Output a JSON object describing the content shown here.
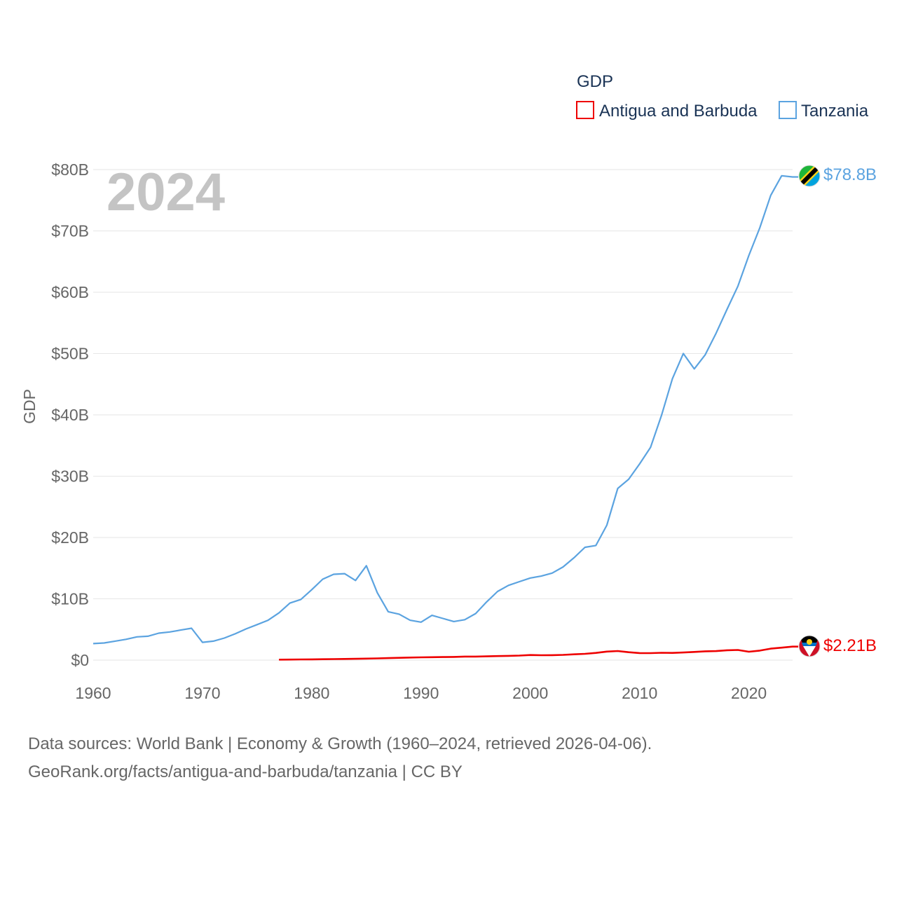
{
  "chart_data": {
    "type": "line",
    "legend_title": "GDP",
    "year_label": "2024",
    "ylabel": "GDP",
    "x_ticks": [
      "1960",
      "1970",
      "1980",
      "1990",
      "2000",
      "2010",
      "2020"
    ],
    "y_ticks": [
      "$0",
      "$10B",
      "$20B",
      "$30B",
      "$40B",
      "$50B",
      "$60B",
      "$70B",
      "$80B"
    ],
    "xlim": [
      1960,
      2024
    ],
    "ylim": [
      0,
      80
    ],
    "units": "billion US$",
    "series": [
      {
        "name": "Antigua and Barbuda",
        "color": "#ee0000",
        "end_label": "$2.21B",
        "flag": "antigua-and-barbuda-flag-icon",
        "x": [
          1977,
          1978,
          1979,
          1980,
          1981,
          1982,
          1983,
          1984,
          1985,
          1986,
          1987,
          1988,
          1989,
          1990,
          1991,
          1992,
          1993,
          1994,
          1995,
          1996,
          1997,
          1998,
          1999,
          2000,
          2001,
          2002,
          2003,
          2004,
          2005,
          2006,
          2007,
          2008,
          2009,
          2010,
          2011,
          2012,
          2013,
          2014,
          2015,
          2016,
          2017,
          2018,
          2019,
          2020,
          2021,
          2022,
          2023,
          2024
        ],
        "values": [
          0.08,
          0.09,
          0.11,
          0.13,
          0.15,
          0.17,
          0.19,
          0.22,
          0.25,
          0.29,
          0.33,
          0.38,
          0.42,
          0.46,
          0.48,
          0.5,
          0.53,
          0.58,
          0.58,
          0.62,
          0.66,
          0.7,
          0.74,
          0.83,
          0.8,
          0.81,
          0.86,
          0.95,
          1.03,
          1.18,
          1.39,
          1.49,
          1.29,
          1.15,
          1.14,
          1.2,
          1.18,
          1.25,
          1.34,
          1.44,
          1.47,
          1.61,
          1.66,
          1.37,
          1.56,
          1.87,
          2.03,
          2.21
        ]
      },
      {
        "name": "Tanzania",
        "color": "#5ba3e0",
        "end_label": "$78.8B",
        "flag": "tanzania-flag-icon",
        "x": [
          1960,
          1961,
          1962,
          1963,
          1964,
          1965,
          1966,
          1967,
          1968,
          1969,
          1970,
          1971,
          1972,
          1973,
          1974,
          1975,
          1976,
          1977,
          1978,
          1979,
          1980,
          1981,
          1982,
          1983,
          1984,
          1985,
          1986,
          1987,
          1988,
          1989,
          1990,
          1991,
          1992,
          1993,
          1994,
          1995,
          1996,
          1997,
          1998,
          1999,
          2000,
          2001,
          2002,
          2003,
          2004,
          2005,
          2006,
          2007,
          2008,
          2009,
          2010,
          2011,
          2012,
          2013,
          2014,
          2015,
          2016,
          2017,
          2018,
          2019,
          2020,
          2021,
          2022,
          2023,
          2024
        ],
        "values": [
          2.7,
          2.8,
          3.1,
          3.4,
          3.8,
          3.9,
          4.4,
          4.6,
          4.9,
          5.2,
          2.9,
          3.1,
          3.6,
          4.3,
          5.1,
          5.8,
          6.5,
          7.7,
          9.3,
          9.9,
          11.5,
          13.2,
          14.0,
          14.1,
          13.0,
          15.4,
          11.0,
          7.9,
          7.5,
          6.5,
          6.2,
          7.3,
          6.8,
          6.3,
          6.6,
          7.6,
          9.5,
          11.2,
          12.2,
          12.8,
          13.4,
          13.7,
          14.2,
          15.2,
          16.7,
          18.4,
          18.7,
          22.0,
          28.0,
          29.5,
          32.0,
          34.7,
          39.9,
          45.9,
          50.0,
          47.5,
          49.8,
          53.3,
          57.2,
          61.0,
          66.0,
          70.5,
          75.8,
          79.0,
          78.8
        ]
      }
    ]
  },
  "source": {
    "line1": "Data sources: World Bank | Economy & Growth (1960–2024, retrieved 2026-04-06).",
    "line2": "GeoRank.org/facts/antigua-and-barbuda/tanzania | CC BY"
  }
}
